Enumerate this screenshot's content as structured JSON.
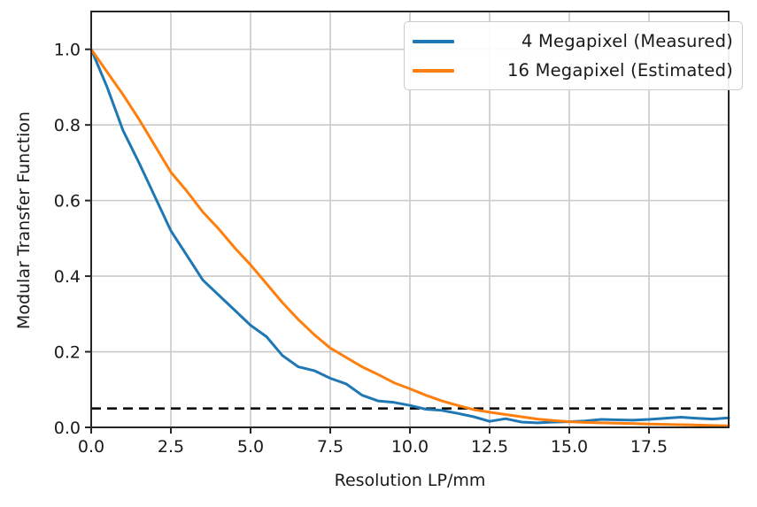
{
  "chart_data": {
    "type": "line",
    "xlabel": "Resolution LP/mm",
    "ylabel": "Modular Transfer Function",
    "xlim": [
      0,
      20
    ],
    "ylim": [
      0,
      1.1
    ],
    "grid": true,
    "legend_position": "upper right",
    "xticks": {
      "values": [
        0,
        2.5,
        5,
        7.5,
        10,
        12.5,
        15,
        17.5
      ],
      "labels": [
        "0.0",
        "2.5",
        "5.0",
        "7.5",
        "10.0",
        "12.5",
        "15.0",
        "17.5"
      ]
    },
    "yticks": {
      "values": [
        0,
        0.2,
        0.4,
        0.6,
        0.8,
        1.0
      ],
      "labels": [
        "0.0",
        "0.2",
        "0.4",
        "0.6",
        "0.8",
        "1.0"
      ]
    },
    "threshold": {
      "y": 0.05,
      "style": "dashed",
      "color": "#000000"
    },
    "x": [
      0,
      0.5,
      1,
      1.5,
      2,
      2.5,
      3,
      3.5,
      4,
      4.5,
      5,
      5.5,
      6,
      6.5,
      7,
      7.5,
      8,
      8.5,
      9,
      9.5,
      10,
      10.5,
      11,
      11.5,
      12,
      12.5,
      13,
      13.5,
      14,
      14.5,
      15,
      15.5,
      16,
      16.5,
      17,
      17.5,
      18,
      18.5,
      19,
      19.5,
      20
    ],
    "series": [
      {
        "name": "4 Megapixel (Measured)",
        "color": "#1f77b4",
        "values": [
          1.0,
          0.9,
          0.785,
          0.7,
          0.61,
          0.52,
          0.455,
          0.39,
          0.35,
          0.31,
          0.27,
          0.24,
          0.19,
          0.16,
          0.15,
          0.13,
          0.115,
          0.085,
          0.07,
          0.066,
          0.058,
          0.048,
          0.045,
          0.037,
          0.028,
          0.016,
          0.023,
          0.014,
          0.012,
          0.014,
          0.015,
          0.017,
          0.021,
          0.02,
          0.019,
          0.021,
          0.024,
          0.027,
          0.024,
          0.022,
          0.025
        ]
      },
      {
        "name": "16 Megapixel (Estimated)",
        "color": "#ff7f0e",
        "values": [
          1.0,
          0.94,
          0.88,
          0.815,
          0.745,
          0.675,
          0.625,
          0.57,
          0.525,
          0.475,
          0.43,
          0.38,
          0.33,
          0.285,
          0.245,
          0.21,
          0.185,
          0.16,
          0.14,
          0.118,
          0.102,
          0.085,
          0.07,
          0.058,
          0.047,
          0.04,
          0.034,
          0.028,
          0.022,
          0.018,
          0.015,
          0.013,
          0.012,
          0.011,
          0.01,
          0.009,
          0.008,
          0.007,
          0.006,
          0.005,
          0.004
        ]
      }
    ]
  }
}
